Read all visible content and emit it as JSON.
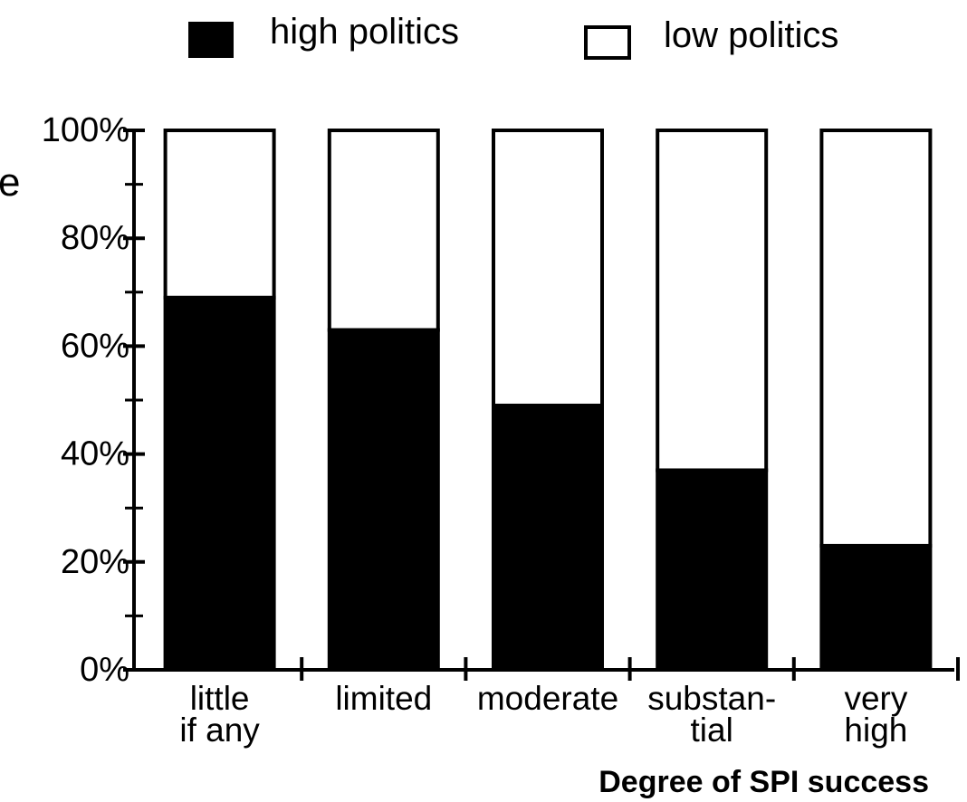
{
  "chart_data": {
    "type": "bar",
    "stacked": true,
    "categories": [
      [
        "little",
        "if any"
      ],
      [
        "limited"
      ],
      [
        "moderate"
      ],
      [
        "substan-",
        "tial"
      ],
      [
        "very",
        "high"
      ]
    ],
    "series": [
      {
        "name": "high politics",
        "values": [
          69,
          63,
          49,
          37,
          23
        ],
        "color": "#000000"
      },
      {
        "name": "low politics",
        "values": [
          31,
          37,
          51,
          63,
          77
        ],
        "color": "#ffffff"
      }
    ],
    "yticks": [
      "0%",
      "20%",
      "40%",
      "60%",
      "80%",
      "100%"
    ],
    "ylim": [
      0,
      100
    ],
    "xlabel": "Degree of SPI success",
    "ylabel": "",
    "legend": "top",
    "grid": false
  },
  "stray_text": "e",
  "colors": {
    "ink": "#000000",
    "paper": "#ffffff"
  }
}
